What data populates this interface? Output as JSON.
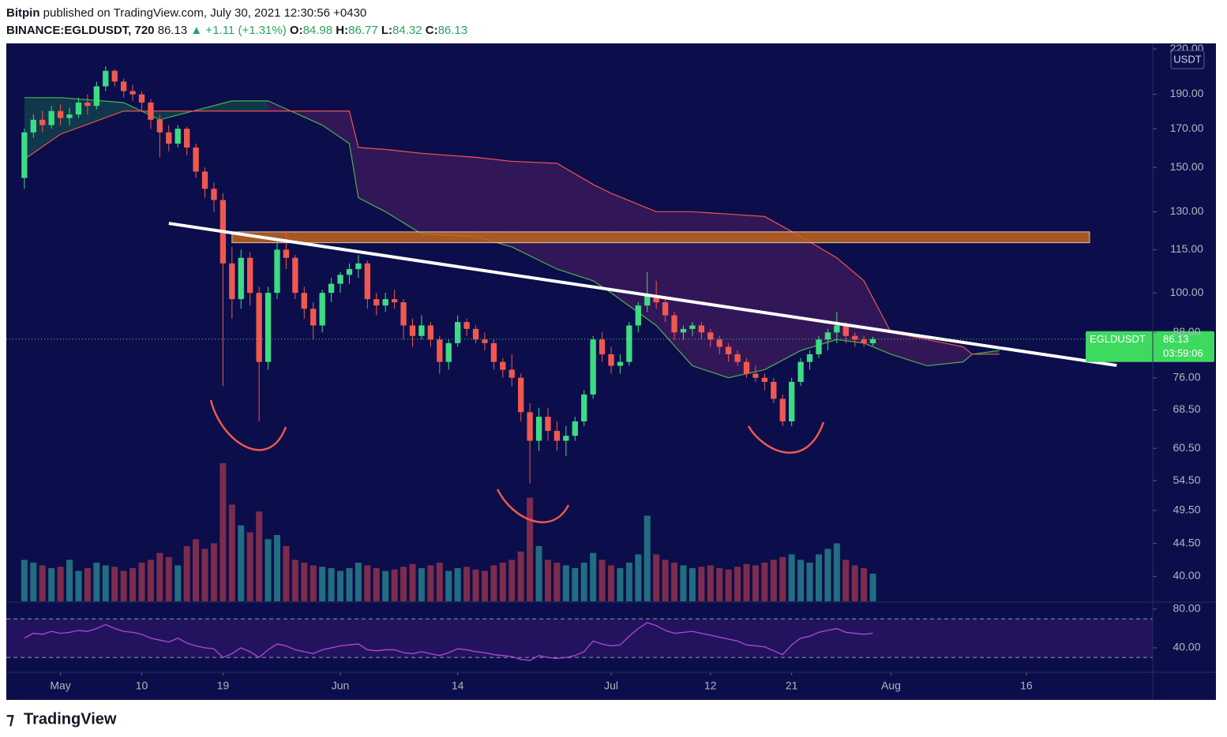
{
  "header": {
    "publisher": "Bitpin",
    "published": "published on TradingView.com, July 30, 2021 12:30:56 +0430",
    "symbol": "BINANCE:EGLDUSDT, 720",
    "change": "▲ +1.11 (+1.31%)",
    "o": "O:",
    "h": "H:",
    "l": "L:",
    "c": "C:"
  },
  "footer": {
    "brand": "TradingView"
  },
  "chart_data": {
    "type": "candlestick",
    "log_scale": true,
    "symbol": "EGLDUSDT",
    "currency": "USDT",
    "countdown": "03:59:06",
    "x": [
      "04-27",
      "04-28",
      "04-29",
      "04-30",
      "05-01",
      "05-02",
      "05-03",
      "05-04",
      "05-05",
      "05-06",
      "05-07",
      "05-08",
      "05-09",
      "05-10",
      "05-11",
      "05-12",
      "05-13",
      "05-14",
      "05-15",
      "05-16",
      "05-17",
      "05-18",
      "05-19",
      "05-20",
      "05-21",
      "05-22",
      "05-23",
      "05-24",
      "05-25",
      "05-26",
      "05-27",
      "05-28",
      "05-29",
      "05-30",
      "05-31",
      "06-01",
      "06-02",
      "06-03",
      "06-04",
      "06-05",
      "06-06",
      "06-07",
      "06-08",
      "06-09",
      "06-10",
      "06-11",
      "06-12",
      "06-13",
      "06-14",
      "06-15",
      "06-16",
      "06-17",
      "06-18",
      "06-19",
      "06-20",
      "06-21",
      "06-22",
      "06-23",
      "06-24",
      "06-25",
      "06-26",
      "06-27",
      "06-28",
      "06-29",
      "06-30",
      "07-01",
      "07-02",
      "07-03",
      "07-04",
      "07-05",
      "07-06",
      "07-07",
      "07-08",
      "07-09",
      "07-10",
      "07-11",
      "07-12",
      "07-13",
      "07-14",
      "07-15",
      "07-16",
      "07-17",
      "07-18",
      "07-19",
      "07-20",
      "07-21",
      "07-22",
      "07-23",
      "07-24",
      "07-25",
      "07-26",
      "07-27",
      "07-28",
      "07-29",
      "07-30"
    ],
    "candles": [
      [
        145,
        170,
        140,
        168
      ],
      [
        168,
        178,
        165,
        175
      ],
      [
        175,
        180,
        168,
        172
      ],
      [
        172,
        183,
        170,
        180
      ],
      [
        180,
        184,
        172,
        176
      ],
      [
        176,
        182,
        172,
        178
      ],
      [
        178,
        188,
        176,
        185
      ],
      [
        185,
        190,
        178,
        183
      ],
      [
        183,
        198,
        181,
        195
      ],
      [
        195,
        208,
        192,
        205
      ],
      [
        205,
        206,
        195,
        198
      ],
      [
        198,
        200,
        188,
        192
      ],
      [
        192,
        196,
        186,
        190
      ],
      [
        190,
        192,
        180,
        185
      ],
      [
        185,
        187,
        170,
        175
      ],
      [
        175,
        178,
        155,
        168
      ],
      [
        168,
        172,
        158,
        162
      ],
      [
        162,
        172,
        160,
        170
      ],
      [
        170,
        171,
        156,
        160
      ],
      [
        160,
        162,
        145,
        148
      ],
      [
        148,
        150,
        136,
        140
      ],
      [
        140,
        143,
        130,
        135
      ],
      [
        135,
        138,
        74,
        110
      ],
      [
        110,
        116,
        92,
        98
      ],
      [
        98,
        115,
        95,
        112
      ],
      [
        112,
        114,
        96,
        100
      ],
      [
        100,
        102,
        66,
        80
      ],
      [
        80,
        102,
        78,
        100
      ],
      [
        100,
        118,
        98,
        115
      ],
      [
        115,
        122,
        108,
        112
      ],
      [
        112,
        113,
        98,
        100
      ],
      [
        100,
        102,
        92,
        95
      ],
      [
        95,
        97,
        86,
        90
      ],
      [
        90,
        101,
        88,
        100
      ],
      [
        100,
        105,
        97,
        103
      ],
      [
        103,
        107,
        100,
        106
      ],
      [
        106,
        110,
        103,
        108
      ],
      [
        108,
        113,
        105,
        110
      ],
      [
        110,
        111,
        95,
        98
      ],
      [
        98,
        100,
        93,
        96
      ],
      [
        96,
        100,
        94,
        98
      ],
      [
        98,
        101,
        95,
        97
      ],
      [
        97,
        98,
        86,
        90
      ],
      [
        90,
        92,
        84,
        87
      ],
      [
        87,
        93,
        86,
        90
      ],
      [
        90,
        91,
        84,
        86
      ],
      [
        86,
        87,
        77,
        80
      ],
      [
        80,
        86,
        78,
        85
      ],
      [
        85,
        93,
        84,
        91
      ],
      [
        91,
        92,
        87,
        89
      ],
      [
        89,
        90,
        85,
        86
      ],
      [
        86,
        88,
        83,
        85
      ],
      [
        85,
        86,
        78,
        80
      ],
      [
        80,
        81,
        76,
        78
      ],
      [
        78,
        82,
        74,
        76
      ],
      [
        76,
        77,
        66,
        68
      ],
      [
        68,
        70,
        54,
        62
      ],
      [
        62,
        69,
        60,
        67
      ],
      [
        67,
        69,
        62,
        64
      ],
      [
        64,
        66,
        60,
        62
      ],
      [
        62,
        65,
        59,
        63
      ],
      [
        63,
        67,
        62,
        66
      ],
      [
        66,
        73,
        65,
        72
      ],
      [
        72,
        87,
        71,
        86
      ],
      [
        86,
        88,
        80,
        82
      ],
      [
        82,
        84,
        77,
        79
      ],
      [
        79,
        82,
        77,
        80
      ],
      [
        80,
        91,
        79,
        90
      ],
      [
        90,
        97,
        88,
        96
      ],
      [
        96,
        107,
        94,
        99
      ],
      [
        99,
        104,
        95,
        97
      ],
      [
        97,
        99,
        91,
        93
      ],
      [
        93,
        94,
        86,
        88
      ],
      [
        88,
        90,
        86,
        89
      ],
      [
        89,
        91,
        87,
        90
      ],
      [
        90,
        91,
        86,
        88
      ],
      [
        88,
        89,
        84,
        86
      ],
      [
        86,
        87,
        82,
        84
      ],
      [
        84,
        85,
        80,
        82
      ],
      [
        82,
        83,
        79,
        80
      ],
      [
        80,
        81,
        76,
        77
      ],
      [
        77,
        79,
        75,
        76
      ],
      [
        76,
        77,
        73,
        75
      ],
      [
        75,
        76,
        70,
        71
      ],
      [
        71,
        72,
        65,
        66
      ],
      [
        66,
        76,
        65,
        75
      ],
      [
        75,
        81,
        74,
        80
      ],
      [
        80,
        83,
        78,
        82
      ],
      [
        82,
        87,
        81,
        86
      ],
      [
        86,
        89,
        83,
        88
      ],
      [
        88,
        94,
        85,
        90
      ],
      [
        90,
        91,
        85,
        87
      ],
      [
        87,
        88,
        84,
        86
      ],
      [
        86,
        87,
        84,
        85
      ],
      [
        84.98,
        86.77,
        84.32,
        86.13
      ]
    ],
    "volumes": [
      30,
      28,
      26,
      24,
      25,
      30,
      22,
      24,
      28,
      26,
      25,
      22,
      24,
      28,
      30,
      35,
      32,
      26,
      40,
      45,
      38,
      42,
      100,
      70,
      55,
      50,
      65,
      45,
      48,
      40,
      30,
      28,
      26,
      25,
      24,
      22,
      24,
      28,
      26,
      24,
      22,
      23,
      25,
      27,
      24,
      26,
      28,
      22,
      24,
      25,
      23,
      22,
      26,
      28,
      30,
      36,
      75,
      40,
      30,
      28,
      26,
      24,
      28,
      35,
      30,
      26,
      24,
      28,
      34,
      62,
      34,
      30,
      28,
      26,
      24,
      25,
      26,
      24,
      23,
      25,
      27,
      26,
      28,
      30,
      32,
      34,
      30,
      28,
      34,
      38,
      42,
      30,
      26,
      24,
      20
    ],
    "rsi": [
      50,
      55,
      54,
      57,
      55,
      56,
      58,
      57,
      60,
      64,
      60,
      57,
      56,
      54,
      50,
      48,
      46,
      50,
      45,
      42,
      40,
      39,
      30,
      34,
      40,
      36,
      30,
      38,
      44,
      42,
      38,
      36,
      34,
      38,
      40,
      42,
      43,
      44,
      38,
      37,
      38,
      38,
      35,
      34,
      36,
      34,
      32,
      35,
      39,
      38,
      36,
      35,
      33,
      32,
      31,
      28,
      27,
      32,
      30,
      29,
      30,
      32,
      36,
      47,
      44,
      42,
      43,
      52,
      60,
      66,
      63,
      58,
      55,
      56,
      57,
      55,
      53,
      51,
      49,
      47,
      43,
      42,
      41,
      37,
      33,
      43,
      50,
      52,
      56,
      58,
      60,
      56,
      55,
      54,
      55
    ],
    "cloud": {
      "x": [
        "04-27",
        "05-01",
        "05-08",
        "05-12",
        "05-20",
        "05-24",
        "05-30",
        "06-02",
        "06-03",
        "06-06",
        "06-10",
        "06-16",
        "06-20",
        "06-25",
        "06-29",
        "07-01",
        "07-06",
        "07-10",
        "07-14",
        "07-18",
        "07-22",
        "07-26",
        "07-29",
        "08-01",
        "08-05",
        "08-09",
        "08-10",
        "08-13"
      ],
      "span_a": [
        188,
        188,
        185,
        175,
        186,
        186,
        172,
        162,
        136,
        130,
        121,
        120,
        116,
        108,
        104,
        100,
        90,
        79,
        76,
        78,
        83,
        86,
        85,
        82,
        79,
        80,
        82,
        83
      ],
      "span_b": [
        154,
        167,
        180,
        180,
        180,
        180,
        180,
        180,
        160,
        159,
        157,
        155,
        153,
        152,
        142,
        138,
        130,
        130,
        129,
        128,
        120,
        112,
        104,
        88,
        86,
        84,
        82,
        82
      ]
    },
    "trendline": {
      "x": [
        "05-13",
        "08-26"
      ],
      "values": [
        125.2,
        79.1
      ]
    },
    "zone": {
      "x": [
        "05-20",
        "08-23"
      ],
      "values": [
        117.6,
        121.8
      ]
    },
    "xlim": [
      "04-25",
      "08-30"
    ],
    "xticks": [
      {
        "value": "05-01",
        "label": "May"
      },
      {
        "value": "05-10",
        "label": "10"
      },
      {
        "value": "05-19",
        "label": "19"
      },
      {
        "value": "06-01",
        "label": "Jun"
      },
      {
        "value": "06-14",
        "label": "14"
      },
      {
        "value": "07-01",
        "label": "Jul"
      },
      {
        "value": "07-12",
        "label": "12"
      },
      {
        "value": "07-21",
        "label": "21"
      },
      {
        "value": "08-01",
        "label": "Aug"
      },
      {
        "value": "08-16",
        "label": "16"
      }
    ],
    "ylim": [
      36.9,
      224
    ],
    "yticks": [
      {
        "value": 220,
        "label": "220.00"
      },
      {
        "value": 190,
        "label": "190.00"
      },
      {
        "value": 170,
        "label": "170.00"
      },
      {
        "value": 150,
        "label": "150.00"
      },
      {
        "value": 130,
        "label": "130.00"
      },
      {
        "value": 115,
        "label": "115.00"
      },
      {
        "value": 100,
        "label": "100.00"
      },
      {
        "value": 88,
        "label": "88.00"
      },
      {
        "value": 76,
        "label": "76.00"
      },
      {
        "value": 68.5,
        "label": "68.50"
      },
      {
        "value": 60.5,
        "label": "60.50"
      },
      {
        "value": 54.5,
        "label": "54.50"
      },
      {
        "value": 49.5,
        "label": "49.50"
      },
      {
        "value": 44.5,
        "label": "44.50"
      },
      {
        "value": 40,
        "label": "40.00"
      }
    ],
    "rsi_ylim": [
      14.7,
      87.3
    ],
    "rsi_yticks": [
      {
        "value": 80,
        "label": "80.00"
      },
      {
        "value": 40,
        "label": "40.00"
      }
    ],
    "rsi_levels": [
      70,
      30
    ],
    "colors": {
      "background": "#0b0e4a",
      "up": "#3ddc84",
      "down": "#f0584f",
      "volume_up": "#226d80",
      "volume_down": "#7c2c4c",
      "span_a": "#4caf50",
      "span_b": "#ef5350",
      "cloud_up": "#123c4c",
      "cloud_down": "#36185a",
      "trendline": "#ffffff",
      "zone": "#c0651e",
      "rsi": "#b048d8",
      "rsi_band": "#23135e",
      "label": "#3ed95f"
    }
  }
}
